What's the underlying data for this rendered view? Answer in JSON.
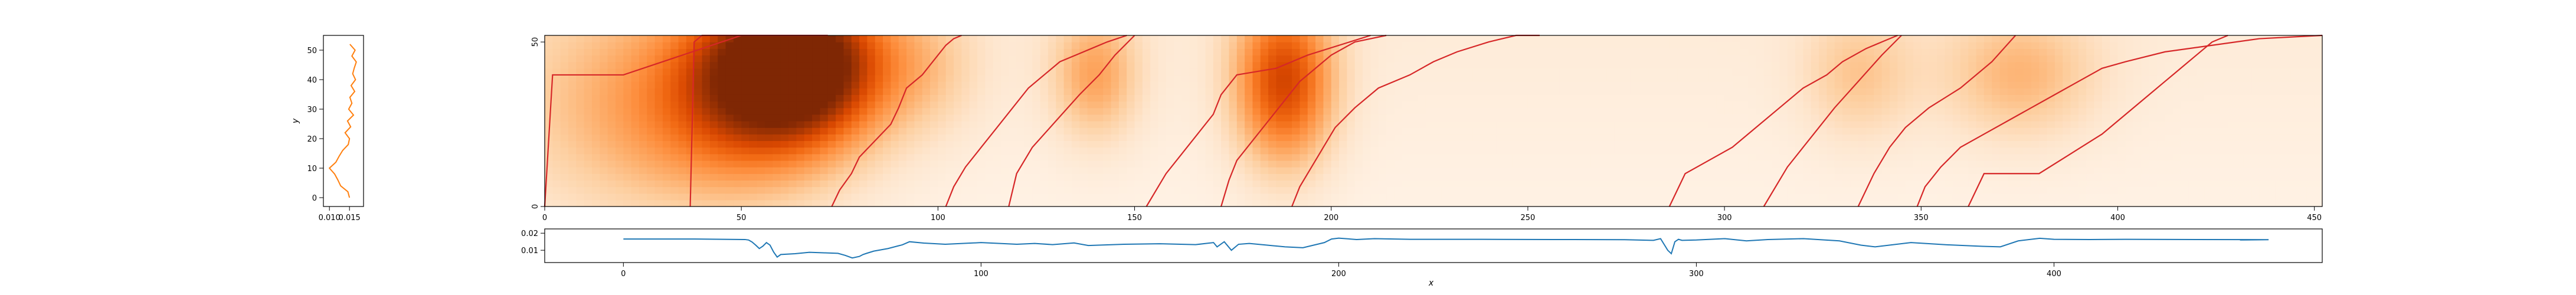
{
  "colors": {
    "background": "#ffffff",
    "side_line": "#ff7f0e",
    "bottom_line": "#1f77b4",
    "path_line": "#d62728",
    "heatmap_low": "#fff5eb",
    "heatmap_high": "#7f2704"
  },
  "chart_data": [
    {
      "type": "line",
      "panel": "left",
      "ylabel": "y",
      "xticks": [
        0.01,
        0.015
      ],
      "xtick_labels": [
        "0.010",
        "0.015"
      ],
      "xlim": [
        0.0085,
        0.0185
      ],
      "yticks": [
        0,
        10,
        20,
        30,
        40,
        50
      ],
      "ylim": [
        -3,
        55
      ],
      "y": [
        0,
        2,
        4,
        6,
        8,
        10,
        12,
        14,
        16,
        18,
        20,
        22,
        24,
        26,
        28,
        30,
        32,
        34,
        36,
        38,
        40,
        42,
        44,
        46,
        48,
        50,
        52
      ],
      "values": [
        0.015,
        0.0146,
        0.0128,
        0.0121,
        0.0113,
        0.01,
        0.0116,
        0.0124,
        0.0133,
        0.0147,
        0.015,
        0.0139,
        0.0153,
        0.0145,
        0.016,
        0.0148,
        0.0156,
        0.0151,
        0.0163,
        0.0154,
        0.0165,
        0.0158,
        0.0162,
        0.0167,
        0.0156,
        0.0164,
        0.0151
      ]
    },
    {
      "type": "heatmap",
      "panel": "main",
      "xticks": [
        0,
        50,
        100,
        150,
        200,
        250,
        300,
        350,
        400,
        450
      ],
      "xlim": [
        0,
        452
      ],
      "yticks": [
        0,
        50
      ],
      "ylim": [
        0,
        52
      ],
      "colormap": "Oranges",
      "path_segments": [
        {
          "x": [
            0,
            2,
            8,
            20,
            50
          ],
          "y": [
            0,
            40,
            40,
            40,
            52
          ]
        },
        {
          "x": [
            37,
            38,
            40,
            62,
            72
          ],
          "y": [
            0,
            50,
            52,
            52,
            52
          ]
        },
        {
          "x": [
            73,
            75,
            78,
            80,
            84,
            88,
            90,
            92,
            96,
            98,
            100,
            102,
            104,
            106
          ],
          "y": [
            0,
            5,
            10,
            15,
            20,
            25,
            30,
            36,
            40,
            43,
            46,
            49,
            51,
            52
          ]
        },
        {
          "x": [
            102,
            104,
            107,
            111,
            115,
            119,
            123,
            127,
            131,
            135,
            139,
            143,
            148
          ],
          "y": [
            0,
            6,
            12,
            18,
            24,
            30,
            36,
            40,
            44,
            46,
            48,
            50,
            52
          ]
        },
        {
          "x": [
            118,
            120,
            124,
            130,
            136,
            141,
            145,
            150
          ],
          "y": [
            0,
            10,
            18,
            26,
            34,
            40,
            46,
            52
          ]
        },
        {
          "x": [
            153,
            155,
            158,
            162,
            166,
            170,
            172,
            176,
            186,
            194,
            210
          ],
          "y": [
            0,
            4,
            10,
            16,
            22,
            28,
            34,
            40,
            42,
            46,
            52
          ]
        },
        {
          "x": [
            172,
            174,
            176,
            180,
            184,
            188,
            192,
            196,
            200,
            206,
            214
          ],
          "y": [
            0,
            8,
            14,
            20,
            26,
            32,
            38,
            42,
            46,
            50,
            52
          ]
        },
        {
          "x": [
            190,
            192,
            195,
            198,
            201,
            206,
            212,
            220,
            226,
            232,
            240,
            247,
            253
          ],
          "y": [
            0,
            6,
            12,
            18,
            24,
            30,
            36,
            40,
            44,
            47,
            50,
            52,
            52
          ]
        },
        {
          "x": [
            286,
            290,
            296,
            302,
            308,
            314,
            320,
            326,
            330,
            336,
            340,
            344
          ],
          "y": [
            0,
            10,
            14,
            18,
            24,
            30,
            36,
            40,
            44,
            48,
            50,
            52
          ]
        },
        {
          "x": [
            310,
            316,
            320,
            324,
            328,
            334,
            340,
            345
          ],
          "y": [
            0,
            12,
            18,
            24,
            30,
            38,
            46,
            52
          ]
        },
        {
          "x": [
            334,
            338,
            342,
            346,
            352,
            360,
            368,
            374
          ],
          "y": [
            0,
            10,
            18,
            24,
            30,
            36,
            44,
            52
          ]
        },
        {
          "x": [
            349,
            351,
            355,
            360,
            366,
            372,
            378,
            384,
            390,
            396,
            402,
            412,
            424,
            436,
            452
          ],
          "y": [
            0,
            6,
            12,
            18,
            22,
            26,
            30,
            34,
            38,
            42,
            44,
            47,
            49,
            51,
            52
          ]
        },
        {
          "x": [
            362,
            366,
            380,
            388,
            396,
            402,
            408,
            412,
            416,
            420,
            424,
            428
          ],
          "y": [
            0,
            10,
            10,
            16,
            22,
            28,
            34,
            38,
            42,
            46,
            50,
            52
          ]
        }
      ],
      "blobs": [
        {
          "x": 64,
          "y": 44,
          "amp": 1.0,
          "sx": 16,
          "sy": 16
        },
        {
          "x": 52,
          "y": 30,
          "amp": 0.45,
          "sx": 20,
          "sy": 20
        },
        {
          "x": 188,
          "y": 38,
          "amp": 0.7,
          "sx": 9,
          "sy": 18
        },
        {
          "x": 140,
          "y": 40,
          "amp": 0.35,
          "sx": 8,
          "sy": 14
        },
        {
          "x": 20,
          "y": 30,
          "amp": 0.25,
          "sx": 24,
          "sy": 26
        },
        {
          "x": 375,
          "y": 40,
          "amp": 0.28,
          "sx": 14,
          "sy": 14
        },
        {
          "x": 334,
          "y": 40,
          "amp": 0.22,
          "sx": 10,
          "sy": 14
        },
        {
          "x": 98,
          "y": 42,
          "amp": 0.15,
          "sx": 10,
          "sy": 14
        }
      ]
    },
    {
      "type": "line",
      "panel": "bottom",
      "xlabel": "x",
      "xticks": [
        0,
        100,
        200,
        300,
        400
      ],
      "xlim": [
        -22,
        475
      ],
      "yticks": [
        0.01,
        0.02
      ],
      "ytick_labels": [
        "0.01",
        "0.02"
      ],
      "ylim": [
        0.0028,
        0.0225
      ],
      "x": [
        0,
        20,
        34,
        35,
        36,
        37,
        38,
        39,
        40,
        41,
        42,
        43,
        44,
        48,
        52,
        56,
        60,
        62,
        64,
        66,
        67,
        68,
        70,
        74,
        78,
        80,
        84,
        90,
        100,
        110,
        115,
        120,
        126,
        130,
        140,
        150,
        160,
        165,
        166,
        168,
        170,
        172,
        175,
        180,
        185,
        190,
        196,
        198,
        200,
        205,
        210,
        220,
        240,
        260,
        280,
        288,
        290,
        292,
        293,
        294,
        295,
        296,
        300,
        308,
        314,
        320,
        330,
        340,
        346,
        350,
        360,
        370,
        380,
        385,
        390,
        396,
        400,
        410,
        420,
        440,
        460,
        452
      ],
      "values": [
        0.0166,
        0.0166,
        0.0163,
        0.016,
        0.0148,
        0.013,
        0.011,
        0.0124,
        0.0145,
        0.013,
        0.009,
        0.006,
        0.0075,
        0.008,
        0.0088,
        0.0085,
        0.0082,
        0.007,
        0.0055,
        0.0064,
        0.0075,
        0.0082,
        0.0095,
        0.011,
        0.0132,
        0.015,
        0.0142,
        0.0135,
        0.0145,
        0.0135,
        0.014,
        0.0133,
        0.0143,
        0.0128,
        0.0135,
        0.0138,
        0.0133,
        0.0145,
        0.012,
        0.015,
        0.01,
        0.0135,
        0.014,
        0.013,
        0.012,
        0.0115,
        0.0145,
        0.0166,
        0.0171,
        0.0163,
        0.0168,
        0.0164,
        0.0164,
        0.0163,
        0.0162,
        0.0158,
        0.0168,
        0.01,
        0.008,
        0.015,
        0.0164,
        0.0158,
        0.016,
        0.0168,
        0.0155,
        0.0163,
        0.0168,
        0.0155,
        0.013,
        0.012,
        0.0145,
        0.0132,
        0.0123,
        0.012,
        0.0155,
        0.017,
        0.0164,
        0.0163,
        0.0164,
        0.0163,
        0.0162,
        0.016
      ]
    }
  ]
}
